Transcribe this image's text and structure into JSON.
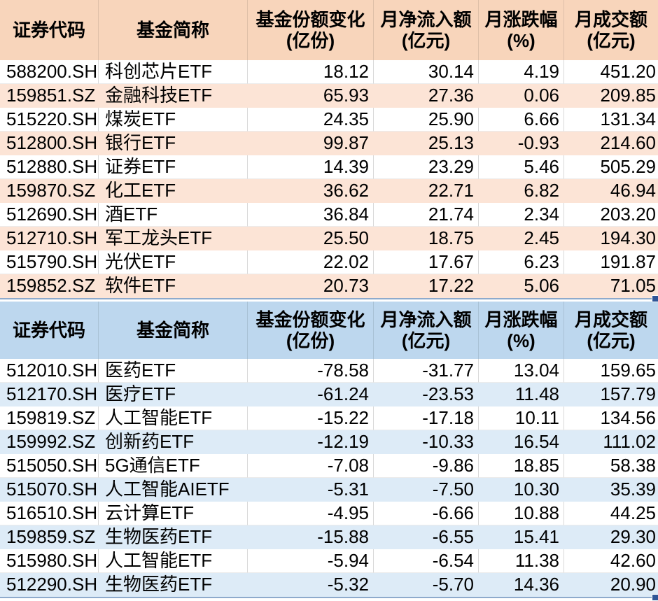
{
  "columns": {
    "code": "证券代码",
    "fund_name": "基金简称",
    "share_change_line1": "基金份额变化",
    "share_change_line2": "(亿份)",
    "net_inflow_line1": "月净流入额",
    "net_inflow_line2": "(亿元)",
    "pct_change_line1": "月涨跌幅",
    "pct_change_line2": "(%)",
    "turnover_line1": "月成交额",
    "turnover_line2": "(亿元)"
  },
  "colors": {
    "table1_header_bg": "#F8D5BB",
    "table1_row_alt_bg": "#FCE4D6",
    "table2_header_bg": "#BDD7EE",
    "table2_row_alt_bg": "#DDEBF7",
    "gridline": "#D9D9D9",
    "selection_border": "#8EAACC",
    "fill_handle": "#2F5597",
    "text": "#000000"
  },
  "tables": [
    {
      "id": "monthly-net-inflow-table",
      "rows": [
        [
          "588200.SH",
          "科创芯片ETF",
          "18.12",
          "30.14",
          "4.19",
          "451.20"
        ],
        [
          "159851.SZ",
          "金融科技ETF",
          "65.93",
          "27.36",
          "0.06",
          "209.85"
        ],
        [
          "515220.SH",
          "煤炭ETF",
          "24.35",
          "25.90",
          "6.66",
          "131.34"
        ],
        [
          "512800.SH",
          "银行ETF",
          "99.87",
          "25.13",
          "-0.93",
          "214.60"
        ],
        [
          "512880.SH",
          "证券ETF",
          "14.39",
          "23.29",
          "5.46",
          "505.29"
        ],
        [
          "159870.SZ",
          "化工ETF",
          "36.62",
          "22.71",
          "6.82",
          "46.94"
        ],
        [
          "512690.SH",
          "酒ETF",
          "36.84",
          "21.74",
          "2.34",
          "203.20"
        ],
        [
          "512710.SH",
          "军工龙头ETF",
          "25.50",
          "18.75",
          "2.45",
          "194.30"
        ],
        [
          "515790.SH",
          "光伏ETF",
          "22.02",
          "17.67",
          "6.23",
          "191.87"
        ],
        [
          "159852.SZ",
          "软件ETF",
          "20.73",
          "17.22",
          "5.06",
          "71.05"
        ]
      ]
    },
    {
      "id": "monthly-net-outflow-table",
      "rows": [
        [
          "512010.SH",
          "医药ETF",
          "-78.58",
          "-31.77",
          "13.04",
          "159.65"
        ],
        [
          "512170.SH",
          "医疗ETF",
          "-61.24",
          "-23.53",
          "11.48",
          "157.79"
        ],
        [
          "159819.SZ",
          "人工智能ETF",
          "-15.22",
          "-17.18",
          "10.11",
          "134.56"
        ],
        [
          "159992.SZ",
          "创新药ETF",
          "-12.19",
          "-10.33",
          "16.54",
          "111.02"
        ],
        [
          "515050.SH",
          "5G通信ETF",
          "-7.08",
          "-9.86",
          "18.85",
          "58.38"
        ],
        [
          "515070.SH",
          "人工智能AIETF",
          "-5.31",
          "-7.50",
          "10.30",
          "35.39"
        ],
        [
          "516510.SH",
          "云计算ETF",
          "-4.95",
          "-6.66",
          "10.88",
          "44.25"
        ],
        [
          "159859.SZ",
          "生物医药ETF",
          "-15.88",
          "-6.55",
          "15.41",
          "29.30"
        ],
        [
          "515980.SH",
          "人工智能ETF",
          "-5.94",
          "-6.54",
          "11.38",
          "42.60"
        ],
        [
          "512290.SH",
          "生物医药ETF",
          "-5.32",
          "-5.70",
          "14.36",
          "20.90"
        ]
      ]
    }
  ]
}
